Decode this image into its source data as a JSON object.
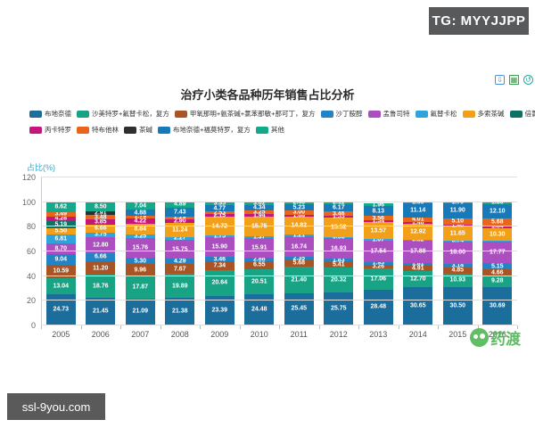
{
  "watermarks": {
    "tg_badge": "TG: MYYJJPP",
    "ssl_badge": "ssl-9you.com",
    "pharmacodia": "药渡"
  },
  "toolbox": {
    "icons": [
      "save-image",
      "data-view",
      "restore"
    ]
  },
  "chart_data": {
    "type": "bar",
    "stacked": true,
    "title": "治疗小类各品种历年销售占比分析",
    "ylabel": "占比(%)",
    "ylim": [
      0,
      120
    ],
    "yticks": [
      0,
      20,
      40,
      60,
      80,
      100,
      120
    ],
    "grid": true,
    "legend_position": "top",
    "legend_rows": [
      8,
      5
    ],
    "categories": [
      "2005",
      "2006",
      "2007",
      "2008",
      "2009",
      "2010",
      "2011",
      "2012",
      "2013",
      "2014",
      "2015",
      "2016"
    ],
    "series": [
      {
        "name": "布地奈德",
        "color": "#1b6d9c",
        "values": [
          24.73,
          21.45,
          21.09,
          21.38,
          23.39,
          24.48,
          25.45,
          25.75,
          28.48,
          30.65,
          30.5,
          30.69
        ]
      },
      {
        "name": "沙美特罗+氟替卡松，复方",
        "color": "#17a384",
        "values": [
          13.04,
          18.76,
          17.87,
          19.89,
          20.64,
          20.51,
          21.4,
          20.32,
          17.06,
          12.7,
          10.93,
          9.28
        ]
      },
      {
        "name": "甲氧那明+氨茶碱+氯苯那敏+那可丁，复方",
        "color": "#a85424",
        "values": [
          10.59,
          11.2,
          9.96,
          7.67,
          7.34,
          6.55,
          5.68,
          5.41,
          3.26,
          4.91,
          4.85,
          4.66
        ]
      },
      {
        "name": "沙丁胺醇",
        "color": "#2383c5",
        "values": [
          9.04,
          6.66,
          5.3,
          4.29,
          3.46,
          2.88,
          2.35,
          1.83,
          1.93,
          1.81,
          3.14,
          5.15
        ]
      },
      {
        "name": "孟鲁司特",
        "color": "#ab4ec0",
        "values": [
          8.7,
          12.8,
          15.76,
          15.75,
          15.9,
          15.91,
          16.74,
          16.93,
          17.54,
          17.88,
          18.0,
          17.77
        ]
      },
      {
        "name": "氟替卡松",
        "color": "#30a3dc",
        "values": [
          6.81,
          3.75,
          3.25,
          2.27,
          1.75,
          1.37,
          1.21,
          0.95,
          1.07,
          0.82,
          0.74,
          0.47
        ]
      },
      {
        "name": "多索茶碱",
        "color": "#f2a019",
        "values": [
          5.5,
          6.66,
          8.84,
          11.24,
          14.72,
          15.75,
          14.82,
          15.52,
          13.57,
          12.92,
          11.65,
          10.3
        ]
      },
      {
        "name": "倍氯米松",
        "color": "#0d7265",
        "values": [
          5.19,
          0,
          0,
          0,
          0,
          0,
          0,
          0,
          0,
          0,
          0,
          0
        ]
      },
      {
        "name": "丙卡特罗",
        "color": "#c4177c",
        "values": [
          4.28,
          3.85,
          4.22,
          2.9,
          2.15,
          1.94,
          1.66,
          1.55,
          1.54,
          1.46,
          1.4,
          1.84
        ]
      },
      {
        "name": "特布他林",
        "color": "#e8651a",
        "values": [
          3.49,
          3.48,
          1.79,
          2.29,
          2.53,
          3.25,
          3.0,
          3.46,
          3.56,
          4.01,
          5.1,
          5.68
        ]
      },
      {
        "name": "茶碱",
        "color": "#2f2f2f",
        "values": [
          0,
          2.91,
          0,
          0,
          0,
          0,
          0,
          0,
          0,
          0,
          0,
          0
        ]
      },
      {
        "name": "布地奈德+福莫特罗，复方",
        "color": "#1779b8",
        "values": [
          0,
          0,
          4.88,
          7.43,
          4.77,
          4.34,
          5.23,
          6.17,
          8.13,
          11.14,
          11.9,
          12.1
        ]
      },
      {
        "name": "其他",
        "color": "#15a98c",
        "values": [
          8.62,
          8.5,
          7.04,
          4.89,
          3.35,
          3.02,
          2.46,
          2.11,
          1.96,
          1.69,
          1.79,
          1.86
        ]
      }
    ]
  }
}
